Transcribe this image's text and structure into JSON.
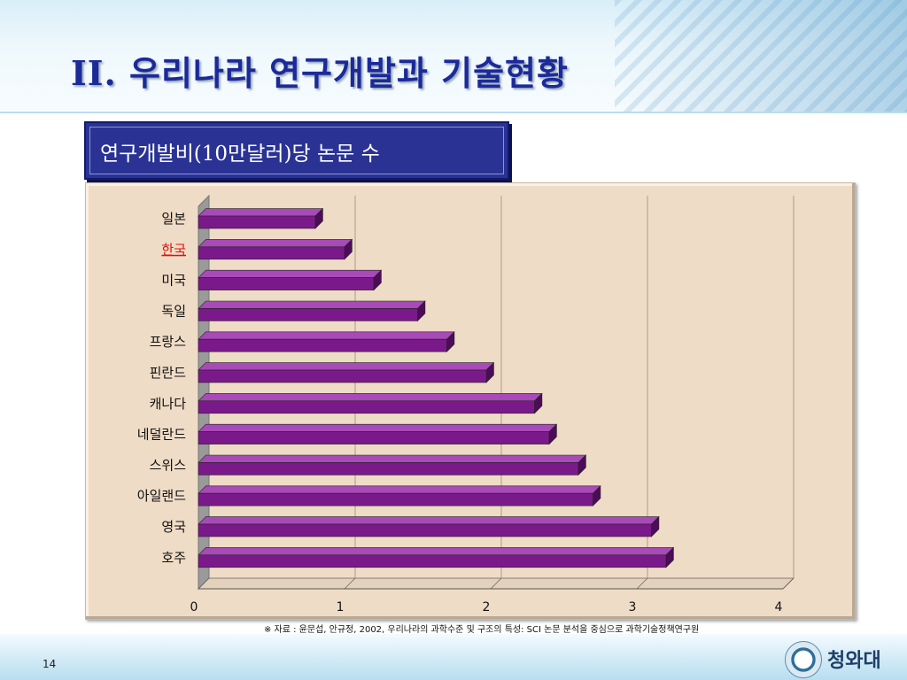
{
  "slide": {
    "title": "II. 우리나라 연구개발과 기술현황",
    "subtitle": "연구개발비(10만달러)당 논문 수",
    "source_note": "※ 자료 : 윤문섭, 안규정, 2002, 우리나라의 과학수준 및 구조의 특성: SCI 논문 분석을 중심으로 과학기술정책연구원",
    "page_number": "14",
    "logo_text": "청와대"
  },
  "colors": {
    "bar_face": "#7a1a8a",
    "bar_top": "#a84ab8",
    "bar_side": "#4c0c58",
    "highlight_label": "#e01010",
    "panel_bg": "#efdcc6"
  },
  "chart_data": {
    "type": "bar",
    "orientation": "horizontal",
    "style": "3d",
    "categories": [
      "일본",
      "한국",
      "미국",
      "독일",
      "프랑스",
      "핀란드",
      "캐나다",
      "네덜란드",
      "스위스",
      "아일랜드",
      "영국",
      "호주"
    ],
    "values": [
      0.8,
      1.0,
      1.2,
      1.5,
      1.7,
      1.97,
      2.3,
      2.4,
      2.6,
      2.7,
      3.1,
      3.2
    ],
    "highlight_category": "한국",
    "xlim": [
      0,
      4
    ],
    "xticks": [
      "0",
      "1",
      "2",
      "3",
      "4"
    ],
    "grid": true,
    "legend": "none"
  }
}
